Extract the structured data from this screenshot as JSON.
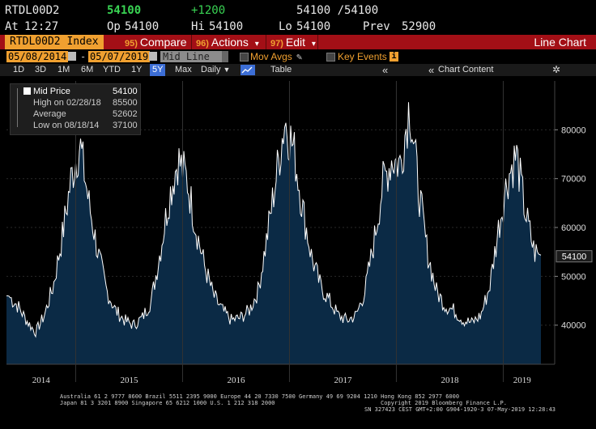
{
  "quote": {
    "ticker": "RTDL00D2",
    "last_price": "54100",
    "change": "+1200",
    "bid_ask": "54100 /54100",
    "at_label": "At",
    "time": "12:27",
    "open_label": "Op",
    "open": "54100",
    "high_label": "Hi",
    "high": "54100",
    "low_label": "Lo",
    "low": "54100",
    "prev_label": "Prev",
    "prev": "52900"
  },
  "menubar": {
    "ticker": "RTDL00D2 Index",
    "compare_num": "95)",
    "compare": "Compare",
    "actions_num": "96)",
    "actions": "Actions",
    "edit_num": "97)",
    "edit": "Edit",
    "dropdown_glyph": "▾",
    "title": "Line Chart"
  },
  "daterow": {
    "start": "05/08/2014",
    "dash": "-",
    "end": "05/07/2019",
    "field": "Mid Line",
    "mov_avgs": "Mov Avgs",
    "key_events": "Key Events",
    "key_events_badge": "i"
  },
  "toolbar": {
    "periods": [
      "1D",
      "3D",
      "1M",
      "6M",
      "YTD",
      "1Y",
      "5Y",
      "Max"
    ],
    "active_period": "5Y",
    "frequency": "Daily",
    "frequency_glyph": "▼",
    "table": "Table",
    "collapse_left": "«",
    "collapse_right": "«",
    "chart_content": "Chart Content",
    "settings_glyph": "✲"
  },
  "legend": {
    "series": "Mid Price",
    "series_value": "54100",
    "high_label": "High on 02/28/18",
    "high_value": "85500",
    "avg_label": "Average",
    "avg_value": "52602",
    "low_label": "Low on 08/18/14",
    "low_value": "37100"
  },
  "chart_data": {
    "type": "area",
    "x_ticks": [
      "2014",
      "2015",
      "2016",
      "2017",
      "2018",
      "2019"
    ],
    "y_ticks": [
      40000,
      50000,
      60000,
      70000,
      80000
    ],
    "ylim": [
      32000,
      90000
    ],
    "last_value_label": "54100",
    "series": [
      {
        "x": [
          "2014-05",
          "2014-06",
          "2014-07",
          "2014-08",
          "2014-09",
          "2014-10",
          "2014-11",
          "2014-12",
          "2015-01",
          "2015-02",
          "2015-03",
          "2015-04",
          "2015-05",
          "2015-06",
          "2015-07",
          "2015-08",
          "2015-09",
          "2015-10",
          "2015-11",
          "2015-12",
          "2016-01",
          "2016-02",
          "2016-03",
          "2016-04",
          "2016-05",
          "2016-06",
          "2016-07",
          "2016-08",
          "2016-09",
          "2016-10",
          "2016-11",
          "2016-12",
          "2017-01",
          "2017-02",
          "2017-03",
          "2017-04",
          "2017-05",
          "2017-06",
          "2017-07",
          "2017-08",
          "2017-09",
          "2017-10",
          "2017-11",
          "2017-12",
          "2018-01",
          "2018-02",
          "2018-03",
          "2018-04",
          "2018-05",
          "2018-06",
          "2018-07",
          "2018-08",
          "2018-09",
          "2018-10",
          "2018-11",
          "2018-12",
          "2019-01",
          "2019-02",
          "2019-03",
          "2019-04",
          "2019-05"
        ],
        "values": [
          46000,
          44000,
          41000,
          38500,
          42000,
          48000,
          58000,
          70000,
          77000,
          65000,
          55000,
          47000,
          43000,
          41000,
          40000,
          41500,
          45000,
          55000,
          66000,
          74000,
          70000,
          60000,
          52000,
          46000,
          43000,
          41000,
          41500,
          43000,
          47000,
          58000,
          70000,
          82000,
          76000,
          64000,
          54000,
          48000,
          45000,
          42000,
          41000,
          42000,
          47000,
          57000,
          69000,
          74000,
          73000,
          85500,
          68000,
          55000,
          47000,
          44000,
          43000,
          41000,
          40500,
          42000,
          48000,
          60000,
          70000,
          75000,
          63000,
          55000,
          54100
        ]
      }
    ]
  },
  "footer": {
    "line1": "Australia 61 2 9777 8600 Brazil 5511 2395 9000 Europe 44 20 7330 7500 Germany 49 69 9204 1210 Hong Kong 852 2977 6000",
    "line2_left": "Japan 81 3 3201 8900         Singapore 65 6212 1000         U.S. 1 212 318 2000",
    "line2_right": "Copyright 2019 Bloomberg Finance L.P.",
    "line3": "SN 327423 CEST GMT+2:00 G904-1920-3 07-May-2019 12:28:43"
  },
  "colors": {
    "background": "#000000",
    "area_fill": "#0b2a45",
    "line": "#ffffff",
    "menubar": "#a30f16",
    "amber": "#f0a030",
    "green": "#39d353",
    "active": "#3c6ed6"
  }
}
